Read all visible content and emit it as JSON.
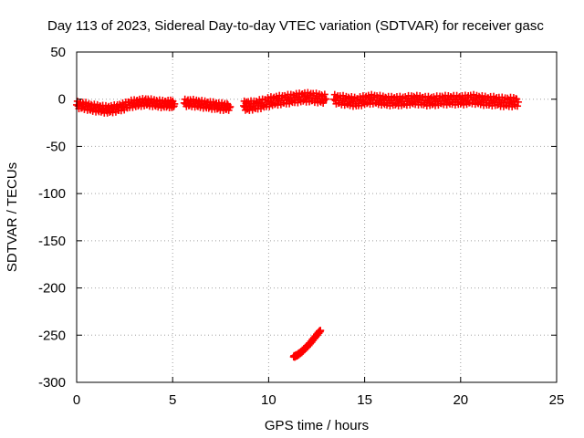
{
  "chart_data": {
    "type": "scatter",
    "title": "Day 113 of 2023, Sidereal Day-to-day VTEC variation (SDTVAR) for receiver gasc",
    "xlabel": "GPS time / hours",
    "ylabel": "SDTVAR / TECUs",
    "xlim": [
      0,
      25
    ],
    "ylim": [
      -300,
      50
    ],
    "xticks": [
      0,
      5,
      10,
      15,
      20,
      25
    ],
    "yticks": [
      50,
      0,
      -50,
      -100,
      -150,
      -200,
      -250,
      -300
    ],
    "grid": true,
    "marker": "+",
    "color": "#ff0000",
    "series": [
      {
        "name": "SDTVAR",
        "segments": [
          {
            "x": [
              0.0,
              0.4,
              0.8,
              1.2,
              1.6,
              2.0,
              2.4,
              2.8,
              3.2,
              3.6,
              4.0,
              4.4,
              4.8,
              5.1
            ],
            "y": [
              -6,
              -7,
              -9,
              -10,
              -11,
              -10,
              -8,
              -5,
              -4,
              -3,
              -4,
              -5,
              -5,
              -5
            ],
            "band": 4
          },
          {
            "x": [
              5.6,
              6.0,
              6.4,
              6.8,
              7.2,
              7.6,
              8.0
            ],
            "y": [
              -4,
              -4,
              -5,
              -6,
              -7,
              -8,
              -8
            ],
            "band": 4
          },
          {
            "x": [
              8.7,
              9.0,
              9.4,
              9.8,
              10.2,
              10.6,
              11.0,
              11.4,
              11.8,
              12.2,
              12.6,
              13.0
            ],
            "y": [
              -7,
              -7,
              -6,
              -4,
              -2,
              -1,
              0,
              1,
              2,
              2,
              1,
              0
            ],
            "band": 5
          },
          {
            "x": [
              13.4,
              13.8,
              14.2,
              14.6,
              15.0,
              15.4,
              15.8,
              16.2,
              16.6,
              17.0,
              17.4,
              17.8,
              18.2,
              18.6,
              19.0,
              19.4,
              19.8,
              20.2,
              20.6,
              21.0,
              21.4,
              21.8,
              22.2,
              22.6,
              23.0
            ],
            "y": [
              0,
              -1,
              -2,
              -3,
              -1,
              0,
              -1,
              -2,
              -2,
              -2,
              -1,
              -1,
              -2,
              -2,
              -1,
              -1,
              -1,
              -1,
              0,
              -1,
              -2,
              -2,
              -3,
              -3,
              -3
            ],
            "band": 5
          },
          {
            "x": [
              11.3,
              11.5,
              11.7,
              11.9,
              12.1,
              12.3,
              12.5,
              12.7
            ],
            "y": [
              -273,
              -271,
              -268,
              -264,
              -260,
              -255,
              -250,
              -245
            ],
            "band": 1
          }
        ]
      }
    ]
  }
}
